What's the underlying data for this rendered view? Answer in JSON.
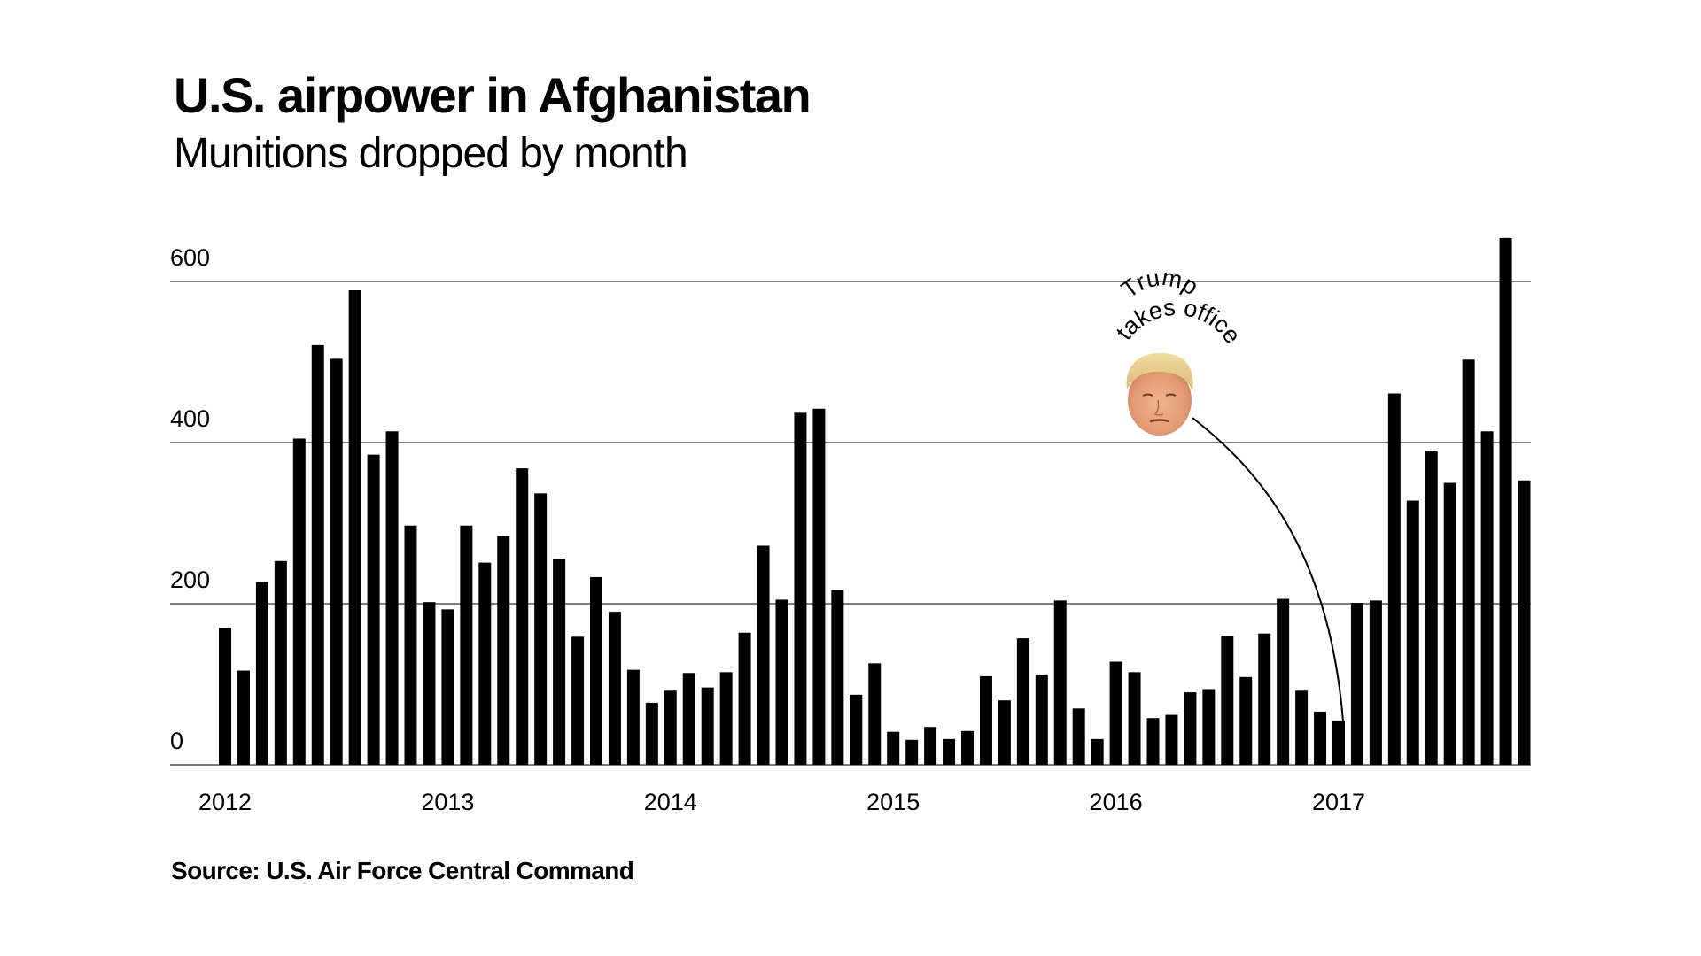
{
  "header": {
    "title": "U.S. airpower in Afghanistan",
    "subtitle": "Munitions dropped by month"
  },
  "footer": {
    "source": "Source: U.S. Air Force Central Command"
  },
  "colors": {
    "bar": "#000000",
    "gridline": "#555555",
    "text": "#000000",
    "background": "#ffffff"
  },
  "chart_data": {
    "type": "bar",
    "title": "U.S. airpower in Afghanistan",
    "subtitle": "Munitions dropped by month",
    "xlabel": "",
    "ylabel": "",
    "ylim": [
      0,
      600
    ],
    "yticks": [
      0,
      200,
      400,
      600
    ],
    "ytick_labels": [
      "0",
      "200",
      "400",
      "600"
    ],
    "xtick_labels": [
      "2012",
      "2013",
      "2014",
      "2015",
      "2016",
      "2017"
    ],
    "xtick_start_index": [
      0,
      12,
      24,
      36,
      48,
      60
    ],
    "grid": true,
    "legend": "none",
    "categories": [
      "2012-01",
      "2012-02",
      "2012-03",
      "2012-04",
      "2012-05",
      "2012-06",
      "2012-07",
      "2012-08",
      "2012-09",
      "2012-10",
      "2012-11",
      "2012-12",
      "2013-01",
      "2013-02",
      "2013-03",
      "2013-04",
      "2013-05",
      "2013-06",
      "2013-07",
      "2013-08",
      "2013-09",
      "2013-10",
      "2013-11",
      "2013-12",
      "2014-01",
      "2014-02",
      "2014-03",
      "2014-04",
      "2014-05",
      "2014-06",
      "2014-07",
      "2014-08",
      "2014-09",
      "2014-10",
      "2014-11",
      "2014-12",
      "2015-01",
      "2015-02",
      "2015-03",
      "2015-04",
      "2015-05",
      "2015-06",
      "2015-07",
      "2015-08",
      "2015-09",
      "2015-10",
      "2015-11",
      "2015-12",
      "2016-01",
      "2016-02",
      "2016-03",
      "2016-04",
      "2016-05",
      "2016-06",
      "2016-07",
      "2016-08",
      "2016-09",
      "2016-10",
      "2016-11",
      "2016-12",
      "2017-01",
      "2017-02",
      "2017-03",
      "2017-04",
      "2017-05",
      "2017-06",
      "2017-07",
      "2017-08",
      "2017-09",
      "2017-10",
      "2017-11"
    ],
    "values": [
      170,
      117,
      227,
      253,
      405,
      521,
      504,
      589,
      385,
      414,
      297,
      202,
      193,
      297,
      251,
      284,
      368,
      337,
      256,
      159,
      233,
      190,
      118,
      77,
      92,
      114,
      96,
      115,
      164,
      272,
      205,
      437,
      442,
      217,
      87,
      126,
      41,
      31,
      47,
      32,
      42,
      110,
      80,
      157,
      112,
      204,
      70,
      32,
      128,
      115,
      58,
      62,
      90,
      94,
      160,
      109,
      163,
      206,
      92,
      66,
      55,
      201,
      204,
      461,
      328,
      389,
      350,
      503,
      414,
      654,
      353
    ],
    "annotations": [
      {
        "line1": "Trump",
        "line2": "takes office",
        "target_category": "2017-01",
        "icon": "trump-face-icon"
      }
    ]
  }
}
